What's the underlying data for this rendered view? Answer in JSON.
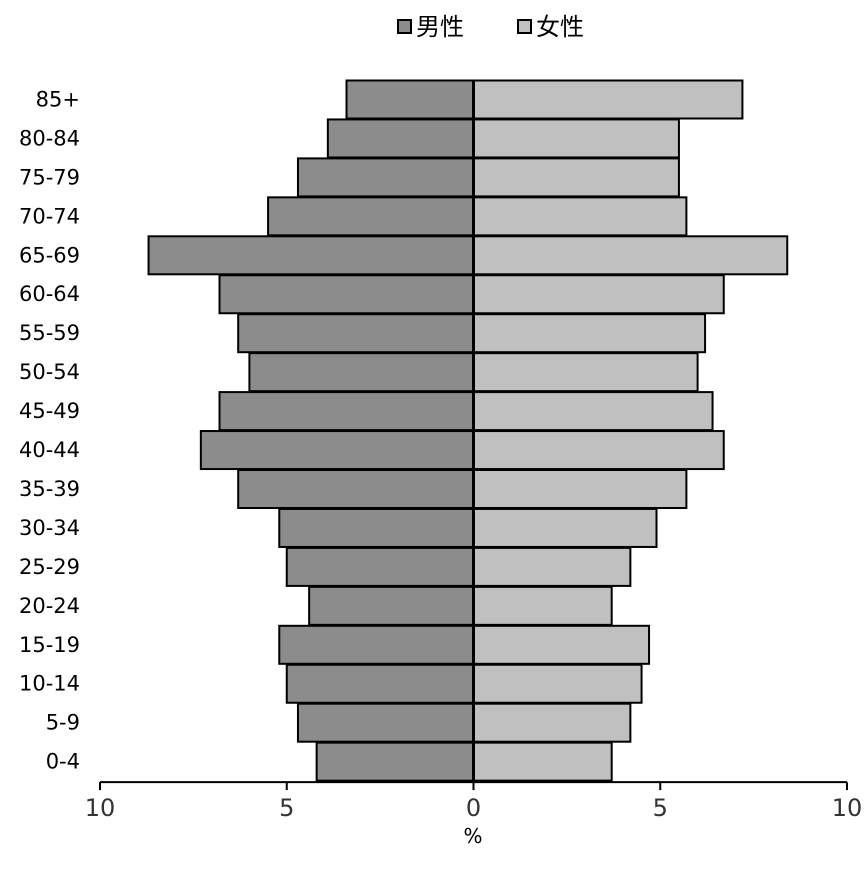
{
  "chart_data": {
    "type": "bar",
    "orientation": "horizontal-population-pyramid",
    "categories": [
      "85+",
      "80-84",
      "75-79",
      "70-74",
      "65-69",
      "60-64",
      "55-59",
      "50-54",
      "45-49",
      "40-44",
      "35-39",
      "30-34",
      "25-29",
      "20-24",
      "15-19",
      "10-14",
      "5-9",
      "0-4"
    ],
    "series": [
      {
        "name": "男性",
        "side": "left",
        "color": "#8c8c8c",
        "values": [
          3.4,
          3.9,
          4.7,
          5.5,
          8.7,
          6.8,
          6.3,
          6.0,
          6.8,
          7.3,
          6.3,
          5.2,
          5.0,
          4.4,
          5.2,
          5.0,
          4.7,
          4.2
        ]
      },
      {
        "name": "女性",
        "side": "right",
        "color": "#c0c0c0",
        "values": [
          7.2,
          5.5,
          5.5,
          5.7,
          8.4,
          6.7,
          6.2,
          6.0,
          6.4,
          6.7,
          5.7,
          4.9,
          4.2,
          3.7,
          4.7,
          4.5,
          4.2,
          3.7
        ]
      }
    ],
    "xlim": [
      -10,
      10
    ],
    "x_ticks": [
      -10,
      -5,
      0,
      5,
      10
    ],
    "x_tick_labels": [
      "10",
      "5",
      "0",
      "5",
      "10"
    ],
    "xlabel": "%",
    "legend_position": "top-center",
    "grid": false
  }
}
